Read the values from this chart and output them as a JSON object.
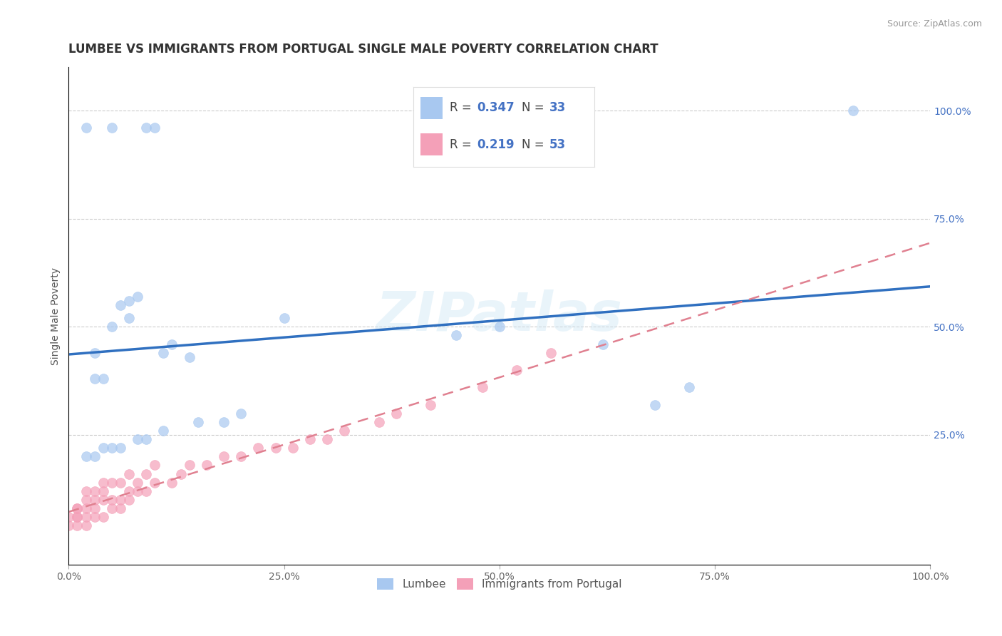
{
  "title": "LUMBEE VS IMMIGRANTS FROM PORTUGAL SINGLE MALE POVERTY CORRELATION CHART",
  "source": "Source: ZipAtlas.com",
  "xlabel": "",
  "ylabel": "Single Male Poverty",
  "xlim": [
    0.0,
    1.0
  ],
  "ylim": [
    -0.05,
    1.1
  ],
  "plot_ylim": [
    0.0,
    1.0
  ],
  "xtick_labels": [
    "0.0%",
    "25.0%",
    "50.0%",
    "75.0%",
    "100.0%"
  ],
  "xtick_positions": [
    0.0,
    0.25,
    0.5,
    0.75,
    1.0
  ],
  "ytick_labels": [
    "25.0%",
    "50.0%",
    "75.0%",
    "100.0%"
  ],
  "ytick_positions": [
    0.25,
    0.5,
    0.75,
    1.0
  ],
  "legend_labels": [
    "Lumbee",
    "Immigrants from Portugal"
  ],
  "lumbee_r": "0.347",
  "lumbee_n": "33",
  "portugal_r": "0.219",
  "portugal_n": "53",
  "lumbee_color": "#a8c8f0",
  "portugal_color": "#f4a0b8",
  "lumbee_line_color": "#3070c0",
  "portugal_line_color": "#e08090",
  "background_color": "#ffffff",
  "watermark_text": "ZIPatlas",
  "lumbee_x": [
    0.02,
    0.05,
    0.09,
    0.1,
    0.03,
    0.04,
    0.06,
    0.07,
    0.08,
    0.03,
    0.05,
    0.07,
    0.11,
    0.12,
    0.14,
    0.2,
    0.25,
    0.45,
    0.5,
    0.62,
    0.68,
    0.72,
    0.91,
    0.02,
    0.03,
    0.04,
    0.05,
    0.06,
    0.08,
    0.09,
    0.11,
    0.15,
    0.18
  ],
  "lumbee_y": [
    0.96,
    0.96,
    0.96,
    0.96,
    0.38,
    0.38,
    0.55,
    0.56,
    0.57,
    0.44,
    0.5,
    0.52,
    0.44,
    0.46,
    0.43,
    0.3,
    0.52,
    0.48,
    0.5,
    0.46,
    0.32,
    0.36,
    1.0,
    0.2,
    0.2,
    0.22,
    0.22,
    0.22,
    0.24,
    0.24,
    0.26,
    0.28,
    0.28
  ],
  "portugal_x": [
    0.0,
    0.0,
    0.01,
    0.01,
    0.01,
    0.01,
    0.01,
    0.02,
    0.02,
    0.02,
    0.02,
    0.02,
    0.03,
    0.03,
    0.03,
    0.03,
    0.04,
    0.04,
    0.04,
    0.04,
    0.05,
    0.05,
    0.05,
    0.06,
    0.06,
    0.06,
    0.07,
    0.07,
    0.07,
    0.08,
    0.08,
    0.09,
    0.09,
    0.1,
    0.1,
    0.12,
    0.13,
    0.14,
    0.16,
    0.18,
    0.2,
    0.22,
    0.24,
    0.26,
    0.28,
    0.3,
    0.32,
    0.36,
    0.38,
    0.42,
    0.48,
    0.52,
    0.56
  ],
  "portugal_y": [
    0.04,
    0.06,
    0.04,
    0.06,
    0.06,
    0.08,
    0.08,
    0.04,
    0.06,
    0.08,
    0.1,
    0.12,
    0.06,
    0.08,
    0.1,
    0.12,
    0.06,
    0.1,
    0.12,
    0.14,
    0.08,
    0.1,
    0.14,
    0.08,
    0.1,
    0.14,
    0.1,
    0.12,
    0.16,
    0.12,
    0.14,
    0.12,
    0.16,
    0.14,
    0.18,
    0.14,
    0.16,
    0.18,
    0.18,
    0.2,
    0.2,
    0.22,
    0.22,
    0.22,
    0.24,
    0.24,
    0.26,
    0.28,
    0.3,
    0.32,
    0.36,
    0.4,
    0.44
  ],
  "title_fontsize": 12,
  "axis_label_fontsize": 10,
  "tick_fontsize": 10,
  "legend_fontsize": 11,
  "r_n_fontsize": 12
}
